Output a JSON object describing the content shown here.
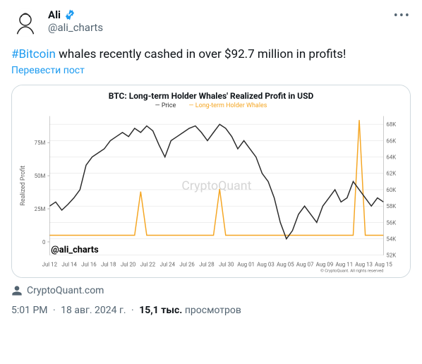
{
  "user": {
    "display_name": "Ali",
    "handle": "@ali_charts"
  },
  "tweet": {
    "hashtag": "#Bitcoin",
    "text_rest": " whales recently cashed in over $92.7 million in profits!",
    "translate_label": "Перевести пост"
  },
  "chart": {
    "title": "BTC: Long-term Holder Whales' Realized Profit in USD",
    "legend_price": "— Price",
    "legend_whales": "— Long-term Holder Whales",
    "watermark": "CryptoQuant",
    "handle_label": "@ali_charts",
    "copyright": "© CryptoQuant. All rights reserved",
    "left_axis": {
      "label": "Realized Profit",
      "ticks": [
        "0",
        "25M",
        "50M",
        "75M"
      ],
      "min": -10,
      "max": 95
    },
    "right_axis": {
      "ticks": [
        "52K",
        "54K",
        "56K",
        "58K",
        "60K",
        "62K",
        "64K",
        "66K",
        "68K"
      ],
      "min": 52,
      "max": 69
    },
    "x_ticks": [
      "Jul 12",
      "Jul 14",
      "Jul 16",
      "Jul 18",
      "Jul 20",
      "Jul 22",
      "Jul 24",
      "Jul 26",
      "Jul 28",
      "Jul 30",
      "Aug 01",
      "Aug 03",
      "Aug 05",
      "Aug 07",
      "Aug 09",
      "Aug 11",
      "Aug 13",
      "Aug 15"
    ],
    "colors": {
      "price_line": "#2b2b2b",
      "whales_line": "#f5a623",
      "grid": "#dddddd",
      "axis_text": "#666666",
      "watermark": "#d5d5d5"
    },
    "price_series": [
      58,
      58.5,
      57.5,
      58.2,
      59,
      60,
      63,
      64,
      64.5,
      65,
      66,
      66.5,
      67,
      66.5,
      67.5,
      67,
      67.8,
      67.2,
      65.5,
      64,
      66,
      66.5,
      67,
      67.5,
      67.8,
      67,
      66,
      67,
      68,
      67.5,
      66.5,
      65,
      66,
      65,
      64,
      62,
      61,
      59,
      56,
      54,
      55,
      57,
      58,
      57,
      56,
      58,
      59,
      60,
      58.5,
      59,
      61,
      60,
      59,
      58,
      59,
      58.5
    ],
    "whales_series": [
      5,
      5,
      5,
      5,
      5,
      5,
      5,
      5,
      5,
      5,
      5,
      5,
      5,
      5,
      5,
      38,
      5,
      5,
      5,
      5,
      5,
      5,
      5,
      5,
      5,
      5,
      5,
      5,
      40,
      5,
      5,
      5,
      5,
      5,
      5,
      5,
      5,
      5,
      5,
      5,
      5,
      5,
      5,
      5,
      5,
      5,
      5,
      5,
      5,
      5,
      5,
      92,
      5,
      5,
      5,
      5
    ],
    "stroke_width": 1.5,
    "font_sizes": {
      "title": 12,
      "legend": 9,
      "axis_tick": 8,
      "axis_label": 9,
      "watermark": 18,
      "handle": 13
    }
  },
  "source": {
    "label": "CryptoQuant.com"
  },
  "meta": {
    "time": "5:01 PM",
    "date": "18 авг. 2024 г.",
    "views_count": "15,1 тыс.",
    "views_label": "просмотров"
  }
}
